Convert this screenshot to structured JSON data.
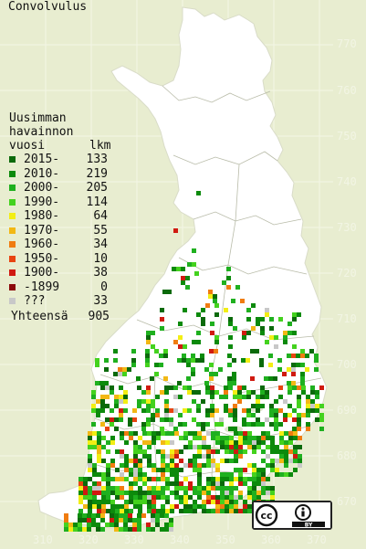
{
  "title": "Convolvulus",
  "legend": {
    "heading_lines": [
      "Uusimman",
      "havainnon"
    ],
    "col_year": "vuosi",
    "col_count": "lkm",
    "entries": [
      {
        "label": "2015-",
        "count": "133",
        "color": "#0b6a0b"
      },
      {
        "label": "2010-",
        "count": "219",
        "color": "#0c8a0c"
      },
      {
        "label": "2000-",
        "count": "205",
        "color": "#1fb01f"
      },
      {
        "label": "1990-",
        "count": "114",
        "color": "#44d21e"
      },
      {
        "label": "1980-",
        "count": "64",
        "color": "#f2ee14"
      },
      {
        "label": "1970-",
        "count": "55",
        "color": "#f2b814"
      },
      {
        "label": "1960-",
        "count": "34",
        "color": "#f07c10"
      },
      {
        "label": "1950-",
        "count": "10",
        "color": "#e84410"
      },
      {
        "label": "1900-",
        "count": "38",
        "color": "#d01a10"
      },
      {
        "label": "-1899",
        "count": "0",
        "color": "#8c0a0a"
      },
      {
        "label": "???",
        "count": "33",
        "color": "#c8c8c8"
      }
    ],
    "total_label": "Yhteensä",
    "total_count": "905"
  },
  "y_ticks": [
    "770",
    "760",
    "750",
    "740",
    "730",
    "720",
    "710",
    "700",
    "690",
    "680",
    "670"
  ],
  "x_ticks": [
    "310",
    "320",
    "330",
    "340",
    "350",
    "360",
    "370"
  ],
  "license": {
    "badge": "cc",
    "text": "BY"
  }
}
